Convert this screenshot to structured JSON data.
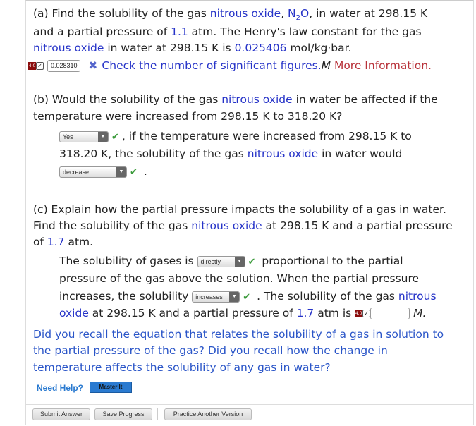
{
  "part_a": {
    "l1_pre": "(a) Find the solubility of the gas ",
    "gas": "nitrous oxide",
    ", ": ", ",
    "formula_n": "N",
    "formula_sub": "2",
    "formula_o": "O",
    "l1_post": ", in water at 298.15 K",
    "l2_pre": "and a partial pressure of ",
    "pressure": "1.1",
    "l2_post": " atm. The Henry's law constant for the gas",
    "l3_post": " in water at 298.15 K is ",
    "kh": "0.025406",
    "l3_unit": " mol/kg·bar.",
    "score_badge": "4.0",
    "answer_value": "0.028310",
    "feedback": "Check the number of significant figures.",
    "unit": "M",
    "more_info": "More Information."
  },
  "part_b": {
    "l1": "(b) Would the solubility of the gas ",
    "l1_post": " in water be affected if the",
    "l2": "temperature were increased from 298.15 K to 318.20 K?",
    "select1": "Yes",
    "l3": ", if the temperature were increased from 298.15 K to",
    "l4_pre": "318.20 K, the solubility of the gas ",
    "l4_post": " in water would",
    "select2": "decrease",
    "period": "."
  },
  "part_c": {
    "l1": "(c) Explain how the partial pressure impacts the solubility of a gas in water.",
    "l2_pre": "Find the solubility of the gas ",
    "l2_post": " at 298.15 K and a partial pressure",
    "l3_pre": "of ",
    "pressure": "1.7",
    "l3_post": " atm.",
    "s1_pre": "The solubility of gases is",
    "select1": "directly",
    "s1_post": "proportional to the partial",
    "s2": "pressure of the gas above the solution. When the partial pressure",
    "s3_pre": "increases, the solubility",
    "select2": "increases",
    "s3_post": ". The solubility of the gas ",
    "nitrous": "nitrous",
    "s4_oxide": "oxide",
    "s4_mid": " at 298.15 K and a partial pressure of ",
    "s4_post": " atm is",
    "score_badge": "4.0",
    "answer_value": "",
    "unit": "M."
  },
  "hint": {
    "l1": "Did you recall the equation that relates the solubility of a gas in solution to",
    "l2": "the partial pressure of the gas? Did you recall how the change in",
    "l3": "temperature affects the solubility of any gas in water?"
  },
  "help": {
    "label": "Need Help?",
    "master_it": "Master It"
  },
  "buttons": {
    "submit": "Submit Answer",
    "save": "Save Progress",
    "practice": "Practice Another Version"
  },
  "colors": {
    "link_blue": "#2633c8",
    "hint_blue": "#2a55c8",
    "correct_green": "#3a9a3a",
    "badge_red": "#8b0d0d"
  }
}
